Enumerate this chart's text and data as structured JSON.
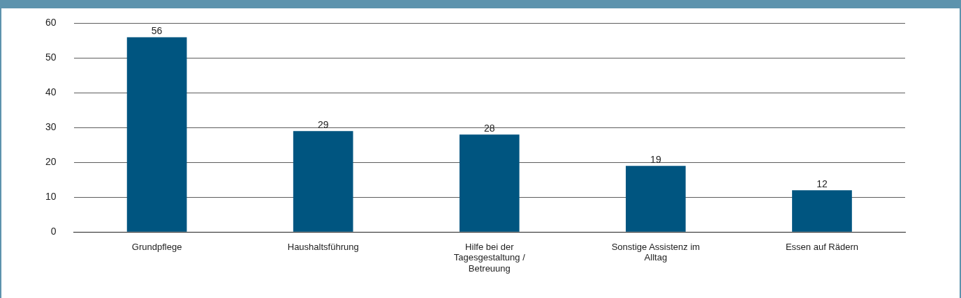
{
  "chart_data": {
    "type": "bar",
    "categories": [
      "Grundpflege",
      "Haushaltsführung",
      "Hilfe bei der Tagesgestaltung / Betreuung",
      "Sonstige Assistenz im Alltag",
      "Essen auf Rädern"
    ],
    "values": [
      56,
      29,
      28,
      19,
      12
    ],
    "color": "#005580",
    "ylim": [
      0,
      60
    ],
    "yticks": [
      0,
      10,
      20,
      30,
      40,
      50,
      60
    ],
    "grid": "y",
    "data_labels": true,
    "legend": false
  }
}
